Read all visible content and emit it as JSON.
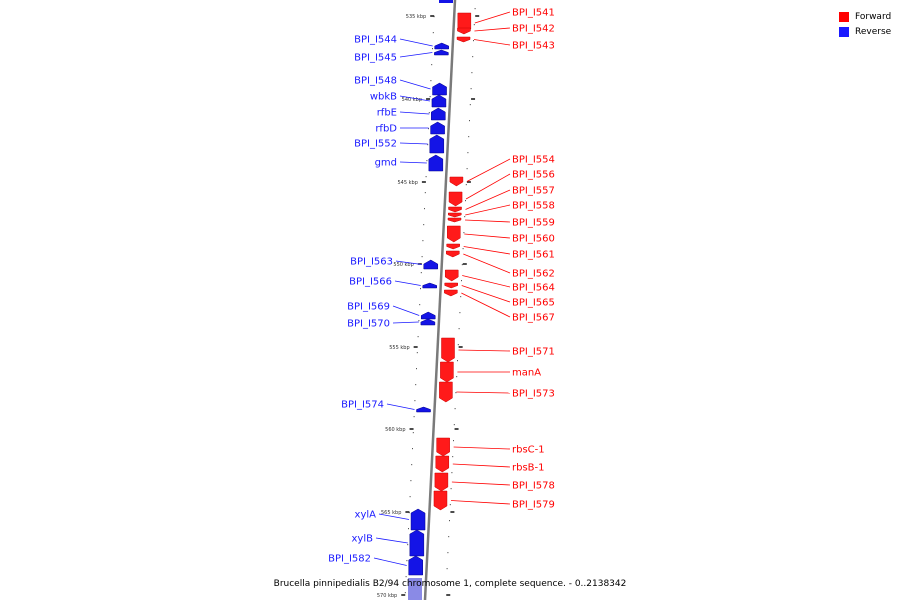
{
  "legend": [
    {
      "label": "Forward",
      "color": "#ff0000"
    },
    {
      "label": "Reverse",
      "color": "#1a1aff"
    }
  ],
  "caption": "Brucella pinnipedialis B2/94 chromosome 1, complete sequence. - 0..2138342",
  "ticks": [
    "535 kbp",
    "540 kbp",
    "545 kbp",
    "550 kbp",
    "555 kbp",
    "560 kbp",
    "565 kbp",
    "570 kbp"
  ],
  "forward_genes": [
    "BPI_I541",
    "BPI_I542",
    "BPI_I543",
    "BPI_I554",
    "BPI_I556",
    "BPI_I557",
    "BPI_I558",
    "BPI_I559",
    "BPI_I560",
    "BPI_I561",
    "BPI_I562",
    "BPI_I564",
    "BPI_I565",
    "BPI_I567",
    "BPI_I571",
    "manA",
    "BPI_I573",
    "rbsC-1",
    "rbsB-1",
    "BPI_I578",
    "BPI_I579"
  ],
  "reverse_genes": [
    "BPI_I544",
    "BPI_I545",
    "BPI_I548",
    "wbkB",
    "rfbE",
    "rfbD",
    "BPI_I552",
    "gmd",
    "BPI_I563",
    "BPI_I566",
    "BPI_I569",
    "BPI_I570",
    "BPI_I574",
    "xylA",
    "xylB",
    "BPI_I582"
  ]
}
